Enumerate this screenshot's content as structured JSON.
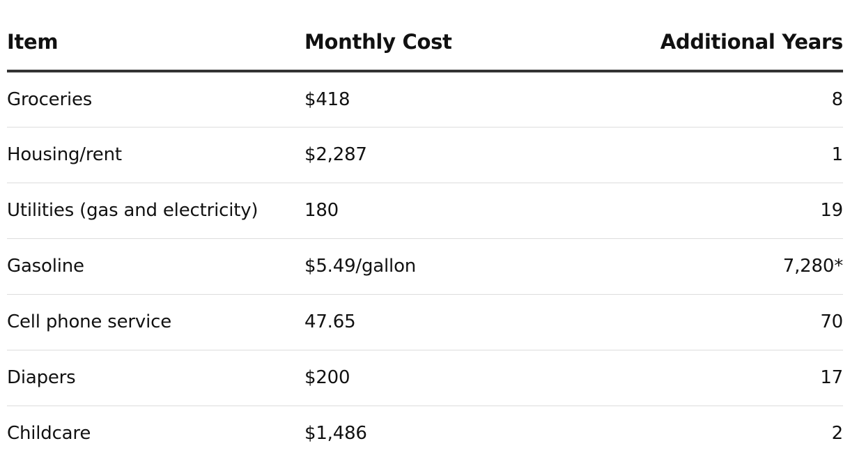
{
  "table": {
    "headers": {
      "item": "Item",
      "monthly_cost": "Monthly Cost",
      "additional_years": "Additional Years"
    },
    "rows": [
      {
        "item": "Groceries",
        "monthly_cost": "$418",
        "additional_years": "8"
      },
      {
        "item": "Housing/rent",
        "monthly_cost": "$2,287",
        "additional_years": "1"
      },
      {
        "item": "Utilities (gas and electricity)",
        "monthly_cost": "180",
        "additional_years": "19"
      },
      {
        "item": "Gasoline",
        "monthly_cost": "$5.49/gallon",
        "additional_years": "7,280*"
      },
      {
        "item": "Cell phone service",
        "monthly_cost": "47.65",
        "additional_years": "70"
      },
      {
        "item": "Diapers",
        "monthly_cost": "$200",
        "additional_years": "17"
      },
      {
        "item": "Childcare",
        "monthly_cost": "$1,486",
        "additional_years": "2"
      }
    ]
  }
}
